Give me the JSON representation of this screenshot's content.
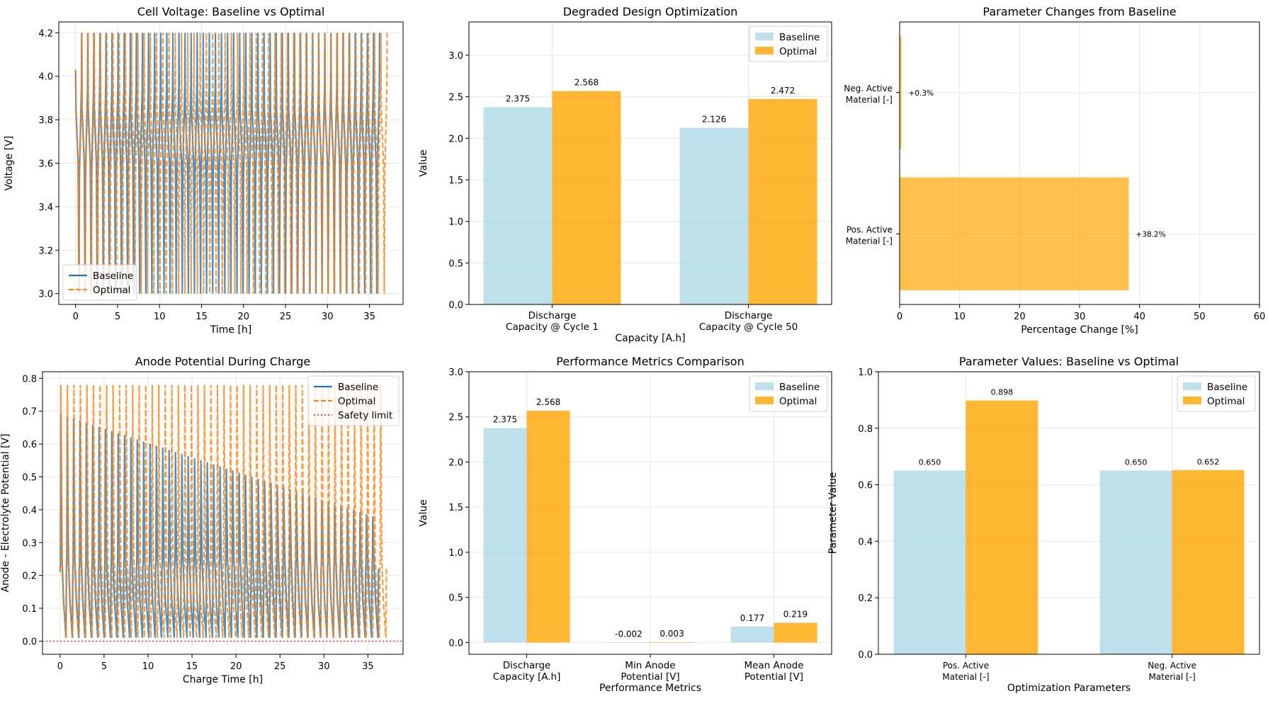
{
  "colors": {
    "baseline": "#add8e6",
    "optimal": "#ffa500",
    "baseline_line": "#1f77b4",
    "optimal_line": "#ff7f0e",
    "safety": "#ff0000"
  },
  "chart_data": [
    {
      "id": "p1",
      "type": "line",
      "title": "Cell Voltage: Baseline vs Optimal",
      "xlabel": "Time [h]",
      "ylabel": "Voltage [V]",
      "xlim": [
        -2,
        39
      ],
      "ylim": [
        2.95,
        4.25
      ],
      "xticks": [
        0,
        5,
        10,
        15,
        20,
        25,
        30,
        35
      ],
      "yticks": [
        3.0,
        3.2,
        3.4,
        3.6,
        3.8,
        4.0,
        4.2
      ],
      "ytick_labels": [
        "3.0",
        "3.2",
        "3.4",
        "3.6",
        "3.8",
        "4.0",
        "4.2"
      ],
      "legend": {
        "position": "lower-left",
        "entries": [
          {
            "label": "Baseline",
            "style": "solid"
          },
          {
            "label": "Optimal",
            "style": "dashed"
          }
        ]
      },
      "series": [
        {
          "name": "Baseline",
          "cycles": 50,
          "t_end": 36.2,
          "vmin": 3.0,
          "vmax": 4.2,
          "v_start": 4.03
        },
        {
          "name": "Optimal",
          "cycles": 50,
          "t_end": 37.1,
          "vmin": 3.0,
          "vmax": 4.2,
          "v_start": 4.03
        }
      ]
    },
    {
      "id": "p2",
      "type": "bar",
      "title": "Degraded Design Optimization",
      "xlabel": "Capacity [A.h]",
      "ylabel": "Value",
      "ylim": [
        0,
        3.4
      ],
      "yticks": [
        0,
        0.5,
        1.0,
        1.5,
        2.0,
        2.5,
        3.0
      ],
      "ytick_labels": [
        "0.0",
        "0.5",
        "1.0",
        "1.5",
        "2.0",
        "2.5",
        "3.0"
      ],
      "categories": [
        [
          "Discharge",
          "Capacity @ Cycle 1"
        ],
        [
          "Discharge",
          "Capacity @ Cycle 50"
        ]
      ],
      "legend": {
        "position": "top-right",
        "entries": [
          {
            "label": "Baseline"
          },
          {
            "label": "Optimal"
          }
        ]
      },
      "series": [
        {
          "name": "Baseline",
          "values": [
            2.375,
            2.126
          ],
          "labels": [
            "2.375",
            "2.126"
          ]
        },
        {
          "name": "Optimal",
          "values": [
            2.568,
            2.472
          ],
          "labels": [
            "2.568",
            "2.472"
          ]
        }
      ]
    },
    {
      "id": "p3",
      "type": "hbar",
      "title": "Parameter Changes from Baseline",
      "xlabel": "Percentage Change [%]",
      "xlim": [
        0,
        60
      ],
      "xticks": [
        0,
        10,
        20,
        30,
        40,
        50,
        60
      ],
      "xtick_labels": [
        "0",
        "10",
        "20",
        "30",
        "40",
        "50",
        "60"
      ],
      "categories": [
        [
          "Pos. Active",
          "Material [-]"
        ],
        [
          "Neg. Active",
          "Material [-]"
        ]
      ],
      "values": [
        38.2,
        0.3
      ],
      "labels": [
        "+38.2%",
        "+0.3%"
      ]
    },
    {
      "id": "p4",
      "type": "line",
      "title": "Anode Potential During Charge",
      "xlabel": "Charge Time [h]",
      "ylabel": "Anode - Electrolyte Potential [V]",
      "xlim": [
        -2,
        39
      ],
      "ylim": [
        -0.04,
        0.82
      ],
      "xticks": [
        0,
        5,
        10,
        15,
        20,
        25,
        30,
        35
      ],
      "yticks": [
        0.0,
        0.1,
        0.2,
        0.3,
        0.4,
        0.5,
        0.6,
        0.7,
        0.8
      ],
      "ytick_labels": [
        "0.0",
        "0.1",
        "0.2",
        "0.3",
        "0.4",
        "0.5",
        "0.6",
        "0.7",
        "0.8"
      ],
      "legend": {
        "position": "top-right",
        "entries": [
          {
            "label": "Baseline",
            "style": "solid"
          },
          {
            "label": "Optimal",
            "style": "dashed"
          },
          {
            "label": "Safety limit",
            "style": "dotted"
          }
        ]
      },
      "safety_limit": 0.0,
      "series": [
        {
          "name": "Baseline",
          "cycles": 50,
          "t_end": 36.2,
          "peak_start": 0.69,
          "peak_end": 0.38
        },
        {
          "name": "Optimal",
          "cycles": 50,
          "t_end": 37.1,
          "peak_start": 0.78,
          "peak_end": 0.78
        }
      ]
    },
    {
      "id": "p5",
      "type": "bar",
      "title": "Performance Metrics Comparison",
      "xlabel": "Performance Metrics",
      "ylabel": "Value",
      "ylim": [
        -0.13,
        3.0
      ],
      "yticks": [
        0,
        0.5,
        1.0,
        1.5,
        2.0,
        2.5,
        3.0
      ],
      "ytick_labels": [
        "0.0",
        "0.5",
        "1.0",
        "1.5",
        "2.0",
        "2.5",
        "3.0"
      ],
      "categories": [
        [
          "Discharge",
          "Capacity [A.h]"
        ],
        [
          "Min Anode",
          "Potential [V]"
        ],
        [
          "Mean Anode",
          "Potential [V]"
        ]
      ],
      "legend": {
        "position": "top-right",
        "entries": [
          {
            "label": "Baseline"
          },
          {
            "label": "Optimal"
          }
        ]
      },
      "series": [
        {
          "name": "Baseline",
          "values": [
            2.375,
            -0.002,
            0.177
          ],
          "labels": [
            "2.375",
            "-0.002",
            "0.177"
          ]
        },
        {
          "name": "Optimal",
          "values": [
            2.568,
            0.003,
            0.219
          ],
          "labels": [
            "2.568",
            "0.003",
            "0.219"
          ]
        }
      ]
    },
    {
      "id": "p6",
      "type": "bar",
      "title": "Parameter Values: Baseline vs Optimal",
      "xlabel": "Optimization Parameters",
      "ylabel": "Parameter Value",
      "ylim": [
        0,
        1.0
      ],
      "yticks": [
        0,
        0.2,
        0.4,
        0.6,
        0.8,
        1.0
      ],
      "ytick_labels": [
        "0.0",
        "0.2",
        "0.4",
        "0.6",
        "0.8",
        "1.0"
      ],
      "categories": [
        [
          "Pos. Active",
          "Material [-]"
        ],
        [
          "Neg. Active",
          "Material [-]"
        ]
      ],
      "legend": {
        "position": "top-right",
        "entries": [
          {
            "label": "Baseline"
          },
          {
            "label": "Optimal"
          }
        ]
      },
      "series": [
        {
          "name": "Baseline",
          "values": [
            0.65,
            0.65
          ],
          "labels": [
            "0.650",
            "0.650"
          ]
        },
        {
          "name": "Optimal",
          "values": [
            0.898,
            0.652
          ],
          "labels": [
            "0.898",
            "0.652"
          ]
        }
      ]
    }
  ]
}
